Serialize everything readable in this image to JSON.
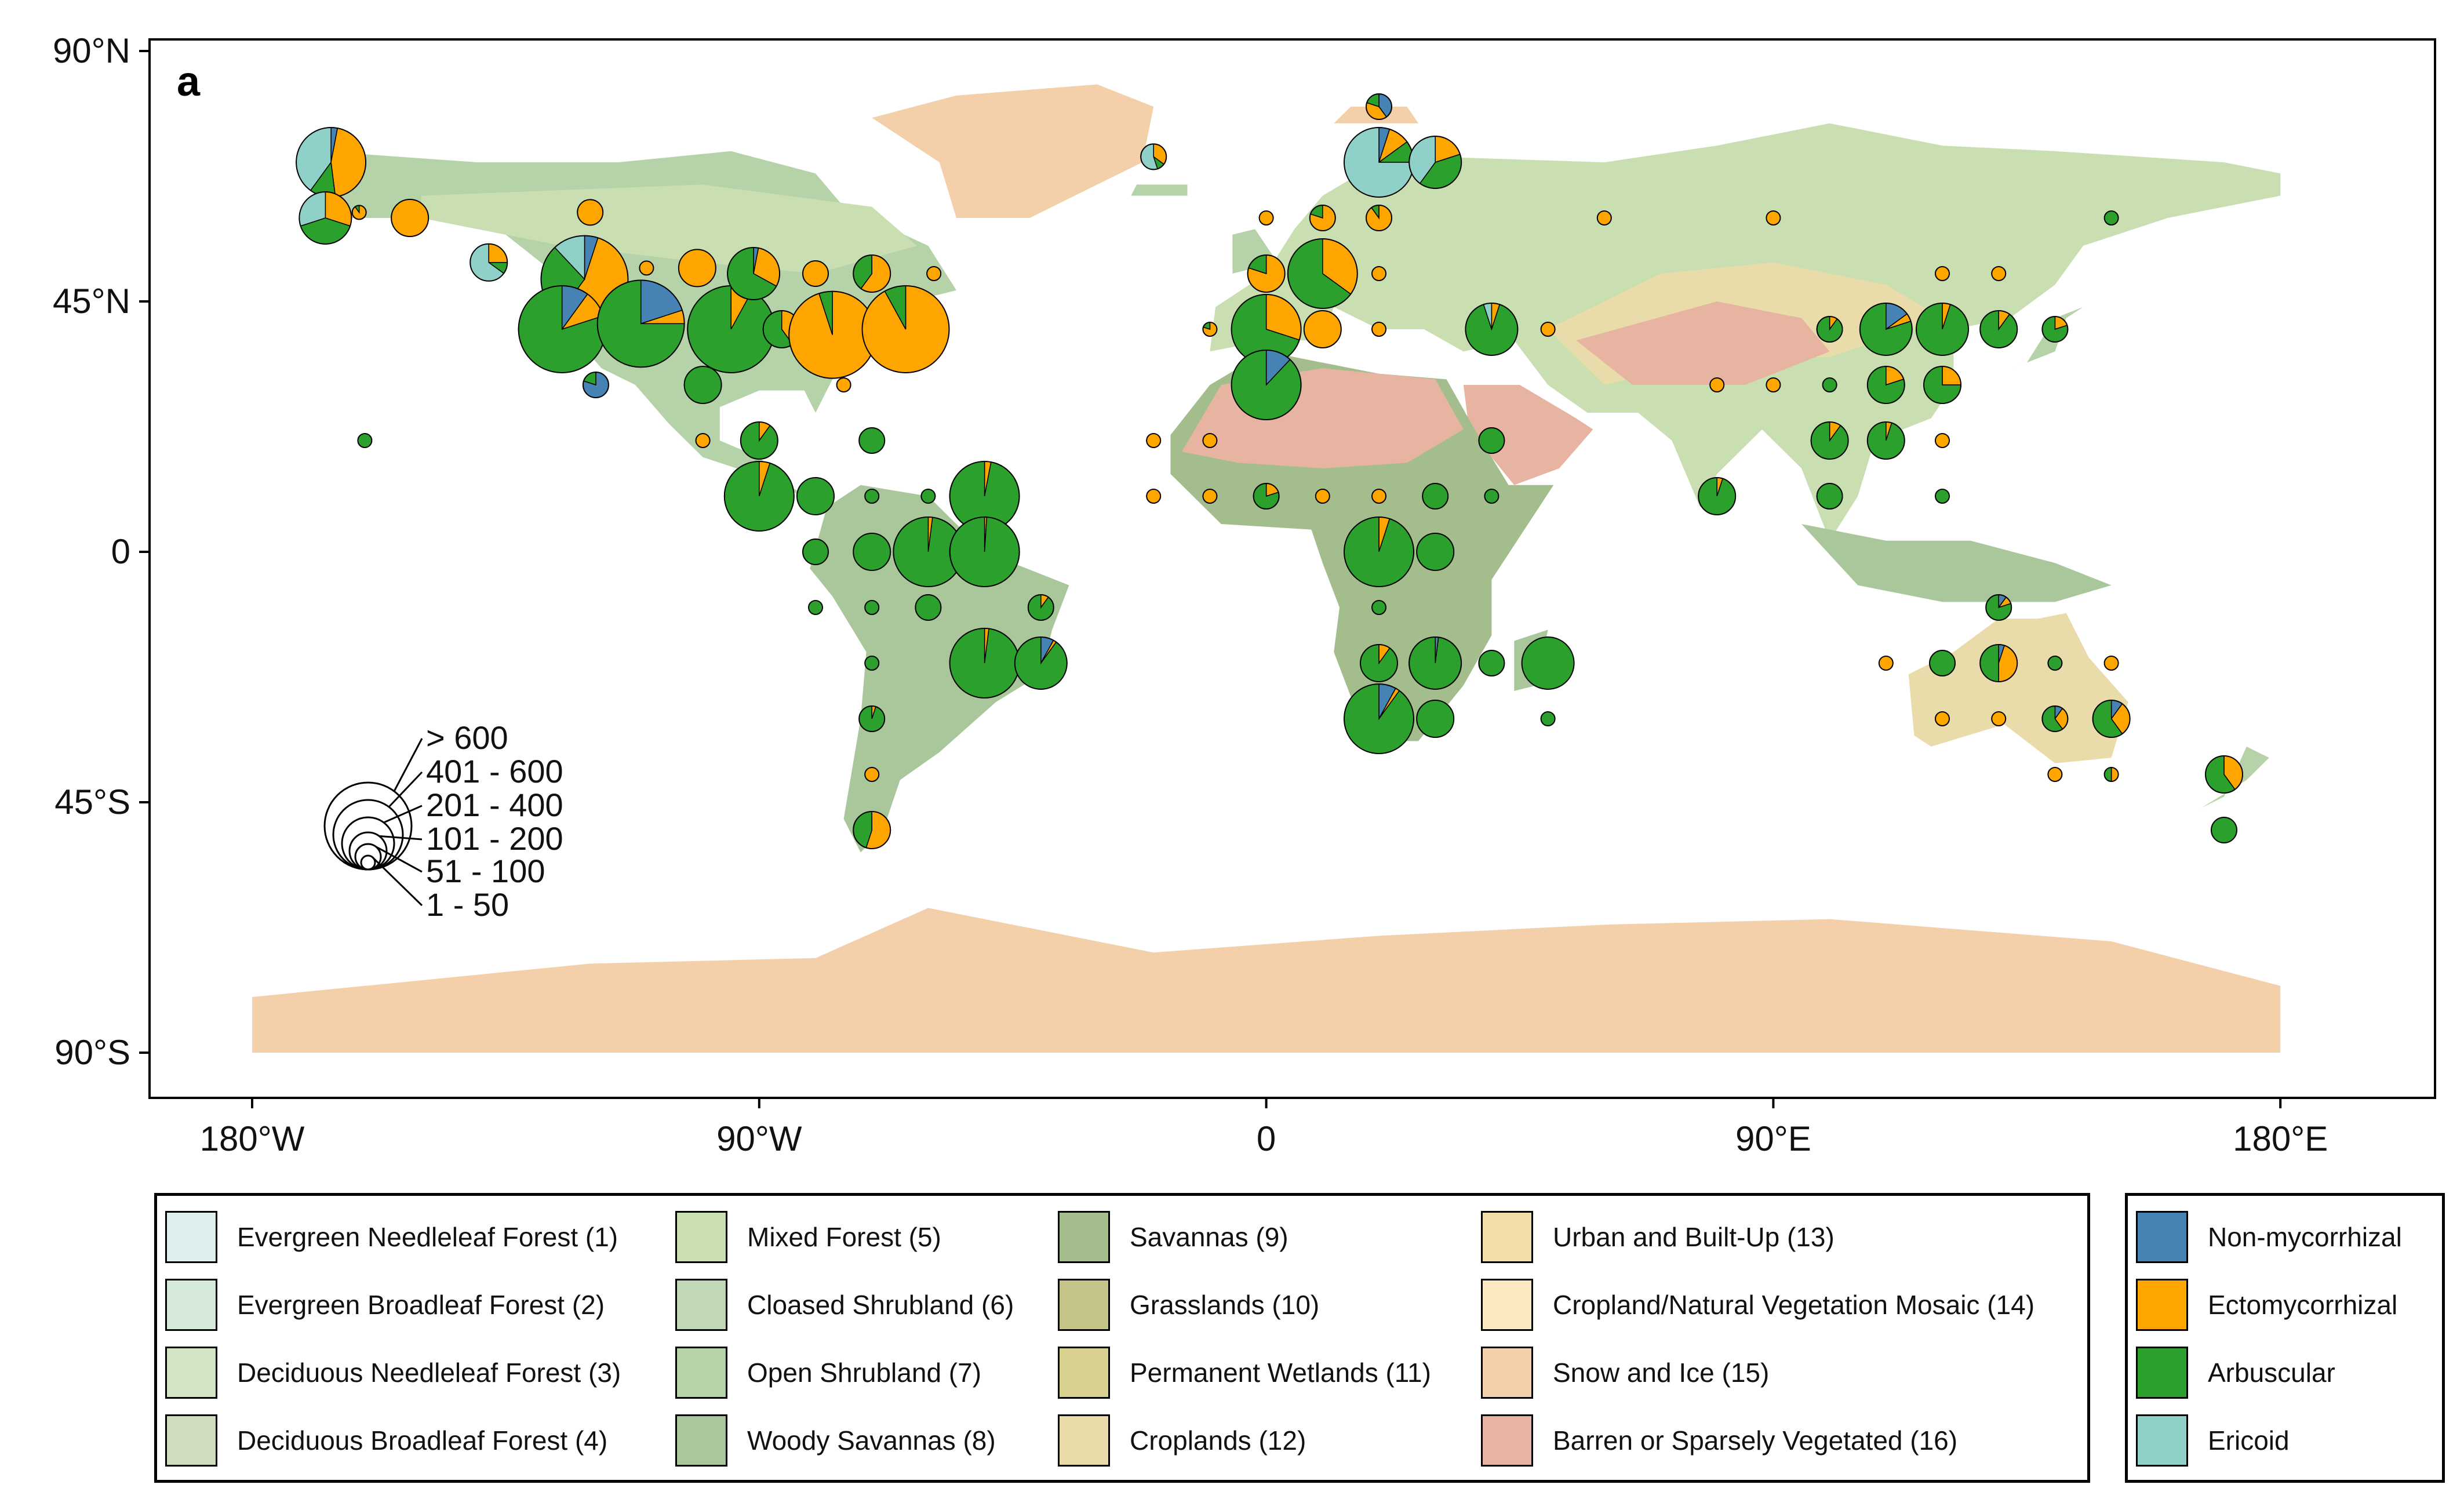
{
  "panel_label": "a",
  "axes": {
    "x_ticks": [
      {
        "value": -180,
        "label": "180°W"
      },
      {
        "value": -90,
        "label": "90°W"
      },
      {
        "value": 0,
        "label": "0"
      },
      {
        "value": 90,
        "label": "90°E"
      },
      {
        "value": 180,
        "label": "180°E"
      }
    ],
    "y_ticks": [
      {
        "value": 90,
        "label": "90°N"
      },
      {
        "value": 45,
        "label": "45°N"
      },
      {
        "value": 0,
        "label": "0"
      },
      {
        "value": -45,
        "label": "45°S"
      },
      {
        "value": -90,
        "label": "90°S"
      }
    ],
    "lon_range": [
      -198,
      208
    ],
    "lat_range": [
      -97,
      97
    ]
  },
  "size_legend": {
    "classes": [
      "> 600",
      "401 - 600",
      "201 - 400",
      "101 - 200",
      "51 - 100",
      "1 - 50"
    ]
  },
  "landcover_legend": [
    {
      "label": "Evergreen Needleleaf Forest (1)",
      "color": "#dfefee"
    },
    {
      "label": "Evergreen Broadleaf Forest (2)",
      "color": "#d6eadc"
    },
    {
      "label": "Deciduous Needleleaf Forest (3)",
      "color": "#d2e4c6"
    },
    {
      "label": "Deciduous Broadleaf Forest (4)",
      "color": "#cfdcbe"
    },
    {
      "label": "Mixed Forest (5)",
      "color": "#c9dfb2"
    },
    {
      "label": "Cloased Shrubland (6)",
      "color": "#c0d8b6"
    },
    {
      "label": "Open Shrubland (7)",
      "color": "#b5d2a8"
    },
    {
      "label": "Woody Savannas (8)",
      "color": "#a9c79b"
    },
    {
      "label": "Savannas (9)",
      "color": "#a3be8c"
    },
    {
      "label": "Grasslands (10)",
      "color": "#c5c58a"
    },
    {
      "label": "Permanent Wetlands (11)",
      "color": "#d7d08e"
    },
    {
      "label": "Croplands (12)",
      "color": "#eadcaa"
    },
    {
      "label": "Urban and Built-Up (13)",
      "color": "#f2dca8"
    },
    {
      "label": "Cropland/Natural Vegetation Mosaic (14)",
      "color": "#fbe8c0"
    },
    {
      "label": "Snow and Ice (15)",
      "color": "#f3cfaa"
    },
    {
      "label": "Barren or Sparsely Vegetated (16)",
      "color": "#e6b4a0"
    }
  ],
  "mycorrhizal_legend": [
    {
      "label": "Non-mycorrhizal",
      "color": "#4682b4"
    },
    {
      "label": "Ectomycorrhizal",
      "color": "#ffa500"
    },
    {
      "label": "Arbuscular",
      "color": "#2ca02c"
    },
    {
      "label": "Ericoid",
      "color": "#8fd0c8"
    }
  ],
  "map_colors": {
    "snow": "#f3cfaa",
    "barren": "#e6b4a0",
    "forest": "#b5d2a8",
    "tropical": "#a9c79b",
    "boreal": "#c9dfb2",
    "grass": "#eadcaa",
    "crop": "#f2dca8",
    "savanna": "#a3be8c"
  },
  "sites": [
    {
      "lon": -166,
      "lat": 70,
      "size": 5,
      "f": [
        0.03,
        0.45,
        0.12,
        0.4
      ]
    },
    {
      "lon": -167,
      "lat": 60,
      "size": 4,
      "f": [
        0.0,
        0.3,
        0.4,
        0.3
      ]
    },
    {
      "lon": -161,
      "lat": 61,
      "size": 1,
      "f": [
        0.0,
        0.9,
        0.1,
        0.0
      ]
    },
    {
      "lon": -152,
      "lat": 60,
      "size": 3,
      "f": [
        0.0,
        1.0,
        0.0,
        0.0
      ]
    },
    {
      "lon": -138,
      "lat": 52,
      "size": 3,
      "f": [
        0.0,
        0.25,
        0.1,
        0.65
      ]
    },
    {
      "lon": -120,
      "lat": 61,
      "size": 2,
      "f": [
        0.0,
        1.0,
        0.0,
        0.0
      ]
    },
    {
      "lon": -121,
      "lat": 49,
      "size": 6,
      "f": [
        0.05,
        0.55,
        0.28,
        0.12
      ]
    },
    {
      "lon": -125,
      "lat": 40,
      "size": 6,
      "f": [
        0.1,
        0.1,
        0.8,
        0.0
      ]
    },
    {
      "lon": -111,
      "lat": 41,
      "size": 6,
      "f": [
        0.2,
        0.05,
        0.75,
        0.0
      ]
    },
    {
      "lon": -110,
      "lat": 51,
      "size": 1,
      "f": [
        0.0,
        1.0,
        0.0,
        0.0
      ]
    },
    {
      "lon": -101,
      "lat": 51,
      "size": 3,
      "f": [
        0.0,
        1.0,
        0.0,
        0.0
      ]
    },
    {
      "lon": -95,
      "lat": 40,
      "size": 6,
      "f": [
        0.0,
        0.08,
        0.92,
        0.0
      ]
    },
    {
      "lon": -91,
      "lat": 50,
      "size": 4,
      "f": [
        0.03,
        0.3,
        0.67,
        0.0
      ]
    },
    {
      "lon": -86,
      "lat": 40,
      "size": 3,
      "f": [
        0.0,
        0.4,
        0.6,
        0.0
      ]
    },
    {
      "lon": -77,
      "lat": 39,
      "size": 6,
      "f": [
        0.0,
        0.95,
        0.05,
        0.0
      ]
    },
    {
      "lon": -80,
      "lat": 50,
      "size": 2,
      "f": [
        0.0,
        1.0,
        0.0,
        0.0
      ]
    },
    {
      "lon": -70,
      "lat": 50,
      "size": 3,
      "f": [
        0.0,
        0.6,
        0.4,
        0.0
      ]
    },
    {
      "lon": -64,
      "lat": 40,
      "size": 6,
      "f": [
        0.0,
        0.92,
        0.08,
        0.0
      ]
    },
    {
      "lon": -59,
      "lat": 50,
      "size": 1,
      "f": [
        0.0,
        1.0,
        0.0,
        0.0
      ]
    },
    {
      "lon": -119,
      "lat": 30,
      "size": 2,
      "f": [
        0.8,
        0.0,
        0.2,
        0.0
      ]
    },
    {
      "lon": -100,
      "lat": 30,
      "size": 3,
      "f": [
        0.0,
        0.0,
        1.0,
        0.0
      ]
    },
    {
      "lon": -75,
      "lat": 30,
      "size": 1,
      "f": [
        0.0,
        1.0,
        0.0,
        0.0
      ]
    },
    {
      "lon": -100,
      "lat": 20,
      "size": 1,
      "f": [
        0.0,
        1.0,
        0.0,
        0.0
      ]
    },
    {
      "lon": -160,
      "lat": 20,
      "size": 1,
      "f": [
        0.0,
        0.0,
        1.0,
        0.0
      ]
    },
    {
      "lon": -90,
      "lat": 20,
      "size": 3,
      "f": [
        0.0,
        0.1,
        0.9,
        0.0
      ]
    },
    {
      "lon": -70,
      "lat": 20,
      "size": 2,
      "f": [
        0.0,
        0.0,
        1.0,
        0.0
      ]
    },
    {
      "lon": -90,
      "lat": 10,
      "size": 5,
      "f": [
        0.0,
        0.05,
        0.95,
        0.0
      ]
    },
    {
      "lon": -80,
      "lat": 10,
      "size": 3,
      "f": [
        0.0,
        0.0,
        1.0,
        0.0
      ]
    },
    {
      "lon": -70,
      "lat": 10,
      "size": 1,
      "f": [
        0.0,
        0.0,
        1.0,
        0.0
      ]
    },
    {
      "lon": -60,
      "lat": 10,
      "size": 1,
      "f": [
        0.0,
        0.0,
        1.0,
        0.0
      ]
    },
    {
      "lon": -50,
      "lat": 10,
      "size": 5,
      "f": [
        0.0,
        0.03,
        0.97,
        0.0
      ]
    },
    {
      "lon": -80,
      "lat": 0,
      "size": 2,
      "f": [
        0.0,
        0.0,
        1.0,
        0.0
      ]
    },
    {
      "lon": -70,
      "lat": 0,
      "size": 3,
      "f": [
        0.0,
        0.0,
        1.0,
        0.0
      ]
    },
    {
      "lon": -60,
      "lat": 0,
      "size": 5,
      "f": [
        0.0,
        0.02,
        0.98,
        0.0
      ]
    },
    {
      "lon": -50,
      "lat": 0,
      "size": 5,
      "f": [
        0.0,
        0.01,
        0.99,
        0.0
      ]
    },
    {
      "lon": -80,
      "lat": -10,
      "size": 1,
      "f": [
        0.0,
        0.0,
        1.0,
        0.0
      ]
    },
    {
      "lon": -70,
      "lat": -10,
      "size": 1,
      "f": [
        0.0,
        0.0,
        1.0,
        0.0
      ]
    },
    {
      "lon": -60,
      "lat": -10,
      "size": 2,
      "f": [
        0.0,
        0.0,
        1.0,
        0.0
      ]
    },
    {
      "lon": -40,
      "lat": -10,
      "size": 2,
      "f": [
        0.0,
        0.1,
        0.9,
        0.0
      ]
    },
    {
      "lon": -50,
      "lat": -20,
      "size": 5,
      "f": [
        0.0,
        0.02,
        0.98,
        0.0
      ]
    },
    {
      "lon": -40,
      "lat": -20,
      "size": 4,
      "f": [
        0.08,
        0.02,
        0.9,
        0.0
      ]
    },
    {
      "lon": -70,
      "lat": -20,
      "size": 1,
      "f": [
        0.0,
        0.0,
        1.0,
        0.0
      ]
    },
    {
      "lon": -70,
      "lat": -30,
      "size": 2,
      "f": [
        0.0,
        0.05,
        0.95,
        0.0
      ]
    },
    {
      "lon": -70,
      "lat": -40,
      "size": 1,
      "f": [
        0.0,
        1.0,
        0.0,
        0.0
      ]
    },
    {
      "lon": -70,
      "lat": -50,
      "size": 3,
      "f": [
        0.0,
        0.55,
        0.45,
        0.0
      ]
    },
    {
      "lon": -20,
      "lat": 71,
      "size": 2,
      "f": [
        0.0,
        0.35,
        0.1,
        0.55
      ]
    },
    {
      "lon": 0,
      "lat": 60,
      "size": 1,
      "f": [
        0.0,
        1.0,
        0.0,
        0.0
      ]
    },
    {
      "lon": 10,
      "lat": 60,
      "size": 2,
      "f": [
        0.0,
        0.8,
        0.2,
        0.0
      ]
    },
    {
      "lon": 20,
      "lat": 80,
      "size": 2,
      "f": [
        0.4,
        0.4,
        0.2,
        0.0
      ]
    },
    {
      "lon": 20,
      "lat": 70,
      "size": 5,
      "f": [
        0.05,
        0.1,
        0.1,
        0.75
      ]
    },
    {
      "lon": 30,
      "lat": 70,
      "size": 4,
      "f": [
        0.0,
        0.2,
        0.4,
        0.4
      ]
    },
    {
      "lon": 20,
      "lat": 60,
      "size": 2,
      "f": [
        0.0,
        0.9,
        0.1,
        0.0
      ]
    },
    {
      "lon": 0,
      "lat": 50,
      "size": 3,
      "f": [
        0.0,
        0.8,
        0.2,
        0.0
      ]
    },
    {
      "lon": 10,
      "lat": 50,
      "size": 5,
      "f": [
        0.0,
        0.35,
        0.65,
        0.0
      ]
    },
    {
      "lon": 20,
      "lat": 50,
      "size": 1,
      "f": [
        0.0,
        1.0,
        0.0,
        0.0
      ]
    },
    {
      "lon": -10,
      "lat": 40,
      "size": 1,
      "f": [
        0.0,
        0.8,
        0.2,
        0.0
      ]
    },
    {
      "lon": 0,
      "lat": 40,
      "size": 5,
      "f": [
        0.0,
        0.3,
        0.7,
        0.0
      ]
    },
    {
      "lon": 10,
      "lat": 40,
      "size": 3,
      "f": [
        0.0,
        1.0,
        0.0,
        0.0
      ]
    },
    {
      "lon": 20,
      "lat": 40,
      "size": 1,
      "f": [
        0.0,
        1.0,
        0.0,
        0.0
      ]
    },
    {
      "lon": 0,
      "lat": 30,
      "size": 5,
      "f": [
        0.12,
        0.0,
        0.88,
        0.0
      ]
    },
    {
      "lon": -20,
      "lat": 20,
      "size": 1,
      "f": [
        0.0,
        1.0,
        0.0,
        0.0
      ]
    },
    {
      "lon": -10,
      "lat": 20,
      "size": 1,
      "f": [
        0.0,
        1.0,
        0.0,
        0.0
      ]
    },
    {
      "lon": -20,
      "lat": 10,
      "size": 1,
      "f": [
        0.0,
        1.0,
        0.0,
        0.0
      ]
    },
    {
      "lon": -10,
      "lat": 10,
      "size": 1,
      "f": [
        0.0,
        1.0,
        0.0,
        0.0
      ]
    },
    {
      "lon": 0,
      "lat": 10,
      "size": 2,
      "f": [
        0.0,
        0.2,
        0.8,
        0.0
      ]
    },
    {
      "lon": 10,
      "lat": 10,
      "size": 1,
      "f": [
        0.0,
        1.0,
        0.0,
        0.0
      ]
    },
    {
      "lon": 20,
      "lat": 10,
      "size": 1,
      "f": [
        0.0,
        1.0,
        0.0,
        0.0
      ]
    },
    {
      "lon": 30,
      "lat": 10,
      "size": 2,
      "f": [
        0.0,
        0.0,
        1.0,
        0.0
      ]
    },
    {
      "lon": 40,
      "lat": 10,
      "size": 1,
      "f": [
        0.0,
        0.0,
        1.0,
        0.0
      ]
    },
    {
      "lon": 40,
      "lat": 20,
      "size": 2,
      "f": [
        0.0,
        0.0,
        1.0,
        0.0
      ]
    },
    {
      "lon": 40,
      "lat": 40,
      "size": 4,
      "f": [
        0.0,
        0.05,
        0.9,
        0.05
      ]
    },
    {
      "lon": 50,
      "lat": 40,
      "size": 1,
      "f": [
        0.0,
        1.0,
        0.0,
        0.0
      ]
    },
    {
      "lon": 20,
      "lat": 0,
      "size": 5,
      "f": [
        0.0,
        0.05,
        0.95,
        0.0
      ]
    },
    {
      "lon": 30,
      "lat": 0,
      "size": 3,
      "f": [
        0.0,
        0.0,
        1.0,
        0.0
      ]
    },
    {
      "lon": 20,
      "lat": -10,
      "size": 1,
      "f": [
        0.0,
        0.0,
        1.0,
        0.0
      ]
    },
    {
      "lon": 20,
      "lat": -20,
      "size": 3,
      "f": [
        0.0,
        0.1,
        0.9,
        0.0
      ]
    },
    {
      "lon": 30,
      "lat": -20,
      "size": 4,
      "f": [
        0.02,
        0.0,
        0.98,
        0.0
      ]
    },
    {
      "lon": 40,
      "lat": -20,
      "size": 2,
      "f": [
        0.0,
        0.0,
        1.0,
        0.0
      ]
    },
    {
      "lon": 50,
      "lat": -20,
      "size": 4,
      "f": [
        0.0,
        0.0,
        1.0,
        0.0
      ]
    },
    {
      "lon": 20,
      "lat": -30,
      "size": 5,
      "f": [
        0.08,
        0.02,
        0.9,
        0.0
      ]
    },
    {
      "lon": 30,
      "lat": -30,
      "size": 3,
      "f": [
        0.0,
        0.0,
        1.0,
        0.0
      ]
    },
    {
      "lon": 50,
      "lat": -30,
      "size": 1,
      "f": [
        0.0,
        0.0,
        1.0,
        0.0
      ]
    },
    {
      "lon": 60,
      "lat": 60,
      "size": 1,
      "f": [
        0.0,
        1.0,
        0.0,
        0.0
      ]
    },
    {
      "lon": 90,
      "lat": 60,
      "size": 1,
      "f": [
        0.0,
        1.0,
        0.0,
        0.0
      ]
    },
    {
      "lon": 80,
      "lat": 30,
      "size": 1,
      "f": [
        0.0,
        1.0,
        0.0,
        0.0
      ]
    },
    {
      "lon": 90,
      "lat": 30,
      "size": 1,
      "f": [
        0.0,
        1.0,
        0.0,
        0.0
      ]
    },
    {
      "lon": 100,
      "lat": 30,
      "size": 1,
      "f": [
        0.0,
        0.0,
        1.0,
        0.0
      ]
    },
    {
      "lon": 100,
      "lat": 40,
      "size": 2,
      "f": [
        0.0,
        0.1,
        0.9,
        0.0
      ]
    },
    {
      "lon": 110,
      "lat": 40,
      "size": 4,
      "f": [
        0.15,
        0.05,
        0.8,
        0.0
      ]
    },
    {
      "lon": 120,
      "lat": 40,
      "size": 4,
      "f": [
        0.0,
        0.05,
        0.95,
        0.0
      ]
    },
    {
      "lon": 130,
      "lat": 40,
      "size": 3,
      "f": [
        0.0,
        0.1,
        0.9,
        0.0
      ]
    },
    {
      "lon": 140,
      "lat": 40,
      "size": 2,
      "f": [
        0.0,
        0.2,
        0.8,
        0.0
      ]
    },
    {
      "lon": 120,
      "lat": 50,
      "size": 1,
      "f": [
        0.0,
        1.0,
        0.0,
        0.0
      ]
    },
    {
      "lon": 130,
      "lat": 50,
      "size": 1,
      "f": [
        0.0,
        1.0,
        0.0,
        0.0
      ]
    },
    {
      "lon": 150,
      "lat": 60,
      "size": 1,
      "f": [
        0.0,
        0.0,
        1.0,
        0.0
      ]
    },
    {
      "lon": 110,
      "lat": 30,
      "size": 3,
      "f": [
        0.0,
        0.2,
        0.8,
        0.0
      ]
    },
    {
      "lon": 120,
      "lat": 30,
      "size": 3,
      "f": [
        0.0,
        0.25,
        0.75,
        0.0
      ]
    },
    {
      "lon": 100,
      "lat": 20,
      "size": 3,
      "f": [
        0.0,
        0.1,
        0.9,
        0.0
      ]
    },
    {
      "lon": 110,
      "lat": 20,
      "size": 3,
      "f": [
        0.0,
        0.05,
        0.95,
        0.0
      ]
    },
    {
      "lon": 120,
      "lat": 20,
      "size": 1,
      "f": [
        0.0,
        1.0,
        0.0,
        0.0
      ]
    },
    {
      "lon": 80,
      "lat": 10,
      "size": 3,
      "f": [
        0.0,
        0.05,
        0.95,
        0.0
      ]
    },
    {
      "lon": 100,
      "lat": 10,
      "size": 2,
      "f": [
        0.0,
        0.0,
        1.0,
        0.0
      ]
    },
    {
      "lon": 120,
      "lat": 10,
      "size": 1,
      "f": [
        0.0,
        0.0,
        1.0,
        0.0
      ]
    },
    {
      "lon": 130,
      "lat": -10,
      "size": 2,
      "f": [
        0.1,
        0.1,
        0.8,
        0.0
      ]
    },
    {
      "lon": 110,
      "lat": -20,
      "size": 1,
      "f": [
        0.0,
        1.0,
        0.0,
        0.0
      ]
    },
    {
      "lon": 120,
      "lat": -20,
      "size": 2,
      "f": [
        0.0,
        0.0,
        1.0,
        0.0
      ]
    },
    {
      "lon": 130,
      "lat": -20,
      "size": 3,
      "f": [
        0.05,
        0.45,
        0.5,
        0.0
      ]
    },
    {
      "lon": 140,
      "lat": -20,
      "size": 1,
      "f": [
        0.0,
        0.0,
        1.0,
        0.0
      ]
    },
    {
      "lon": 150,
      "lat": -20,
      "size": 1,
      "f": [
        0.0,
        1.0,
        0.0,
        0.0
      ]
    },
    {
      "lon": 120,
      "lat": -30,
      "size": 1,
      "f": [
        0.0,
        1.0,
        0.0,
        0.0
      ]
    },
    {
      "lon": 130,
      "lat": -30,
      "size": 1,
      "f": [
        0.0,
        1.0,
        0.0,
        0.0
      ]
    },
    {
      "lon": 140,
      "lat": -30,
      "size": 2,
      "f": [
        0.1,
        0.3,
        0.6,
        0.0
      ]
    },
    {
      "lon": 150,
      "lat": -30,
      "size": 3,
      "f": [
        0.1,
        0.3,
        0.6,
        0.0
      ]
    },
    {
      "lon": 140,
      "lat": -40,
      "size": 1,
      "f": [
        0.0,
        1.0,
        0.0,
        0.0
      ]
    },
    {
      "lon": 150,
      "lat": -40,
      "size": 1,
      "f": [
        0.0,
        0.5,
        0.5,
        0.0
      ]
    },
    {
      "lon": 170,
      "lat": -40,
      "size": 3,
      "f": [
        0.0,
        0.4,
        0.6,
        0.0
      ]
    },
    {
      "lon": 170,
      "lat": -50,
      "size": 2,
      "f": [
        0.0,
        0.0,
        1.0,
        0.0
      ]
    }
  ]
}
